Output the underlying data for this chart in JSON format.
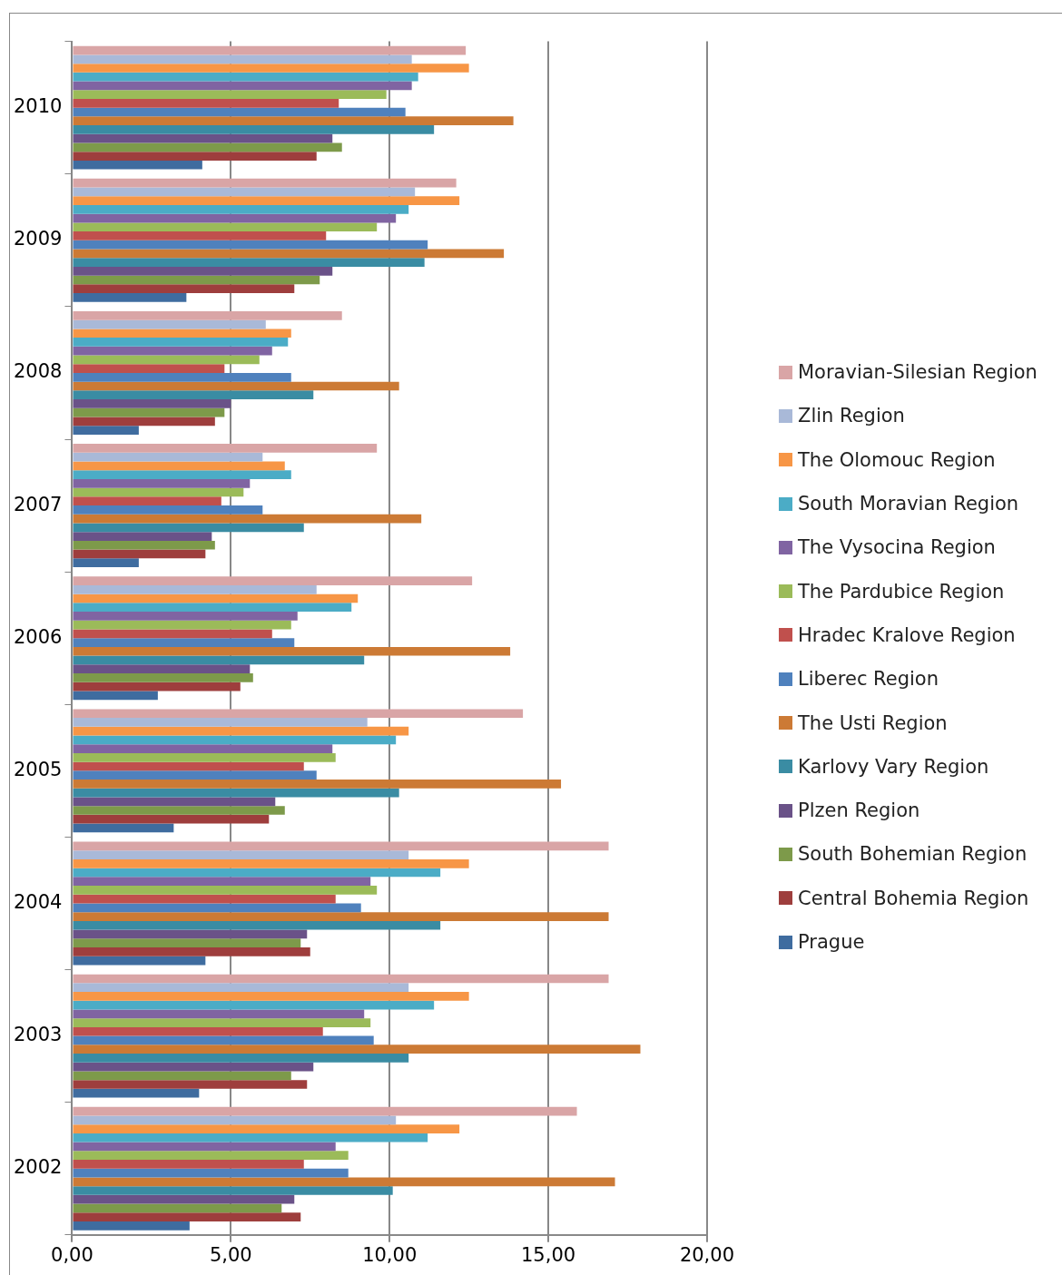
{
  "chart_data": {
    "type": "bar",
    "orientation": "horizontal",
    "categories": [
      "2010",
      "2009",
      "2008",
      "2007",
      "2006",
      "2005",
      "2004",
      "2003",
      "2002"
    ],
    "xlim": [
      0,
      20
    ],
    "xticks": [
      {
        "value": 0,
        "label": "0,00"
      },
      {
        "value": 5,
        "label": "5,00"
      },
      {
        "value": 10,
        "label": "10,00"
      },
      {
        "value": 15,
        "label": "15,00"
      },
      {
        "value": 20,
        "label": "20,00"
      }
    ],
    "grid": "x",
    "legend": "right",
    "series": [
      {
        "name": "Moravian-Silesian Region",
        "color": "#d9a5a6",
        "values": [
          12.4,
          12.1,
          8.5,
          9.6,
          12.6,
          14.2,
          16.9,
          16.9,
          15.9
        ]
      },
      {
        "name": "Zlin Region",
        "color": "#a9b9d8",
        "values": [
          10.7,
          10.8,
          6.1,
          6.0,
          7.7,
          9.3,
          10.6,
          10.6,
          10.2
        ]
      },
      {
        "name": "The Olomouc Region",
        "color": "#f79646",
        "values": [
          12.5,
          12.2,
          6.9,
          6.7,
          9.0,
          10.6,
          12.5,
          12.5,
          12.2
        ]
      },
      {
        "name": "South Moravian Region",
        "color": "#4bacc6",
        "values": [
          10.9,
          10.6,
          6.8,
          6.9,
          8.8,
          10.2,
          11.6,
          11.4,
          11.2
        ]
      },
      {
        "name": "The Vysocina Region",
        "color": "#8064a2",
        "values": [
          10.7,
          10.2,
          6.3,
          5.6,
          7.1,
          8.2,
          9.4,
          9.2,
          8.3
        ]
      },
      {
        "name": "The Pardubice Region",
        "color": "#9bbb59",
        "values": [
          9.9,
          9.6,
          5.9,
          5.4,
          6.9,
          8.3,
          9.6,
          9.4,
          8.7
        ]
      },
      {
        "name": "Hradec Kralove Region",
        "color": "#c0504d",
        "values": [
          8.4,
          8.0,
          4.8,
          4.7,
          6.3,
          7.3,
          8.3,
          7.9,
          7.3
        ]
      },
      {
        "name": "Liberec Region",
        "color": "#4f81bd",
        "values": [
          10.5,
          11.2,
          6.9,
          6.0,
          7.0,
          7.7,
          9.1,
          9.5,
          8.7
        ]
      },
      {
        "name": "The Usti Region",
        "color": "#cc7a35",
        "values": [
          13.9,
          13.6,
          10.3,
          11.0,
          13.8,
          15.4,
          16.9,
          17.9,
          17.1
        ]
      },
      {
        "name": "Karlovy Vary Region",
        "color": "#3a8ca3",
        "values": [
          11.4,
          11.1,
          7.6,
          7.3,
          9.2,
          10.3,
          11.6,
          10.6,
          10.1
        ]
      },
      {
        "name": "Plzen Region",
        "color": "#6a5288",
        "values": [
          8.2,
          8.2,
          5.0,
          4.4,
          5.6,
          6.4,
          7.4,
          7.6,
          7.0
        ]
      },
      {
        "name": "South Bohemian Region",
        "color": "#7d9a4a",
        "values": [
          8.5,
          7.8,
          4.8,
          4.5,
          5.7,
          6.7,
          7.2,
          6.9,
          6.6
        ]
      },
      {
        "name": "Central Bohemia Region",
        "color": "#9e3e3d",
        "values": [
          7.7,
          7.0,
          4.5,
          4.2,
          5.3,
          6.2,
          7.5,
          7.4,
          7.2
        ]
      },
      {
        "name": "Prague",
        "color": "#3f6c9f",
        "values": [
          4.1,
          3.6,
          2.1,
          2.1,
          2.7,
          3.2,
          4.2,
          4.0,
          3.7
        ]
      }
    ]
  }
}
